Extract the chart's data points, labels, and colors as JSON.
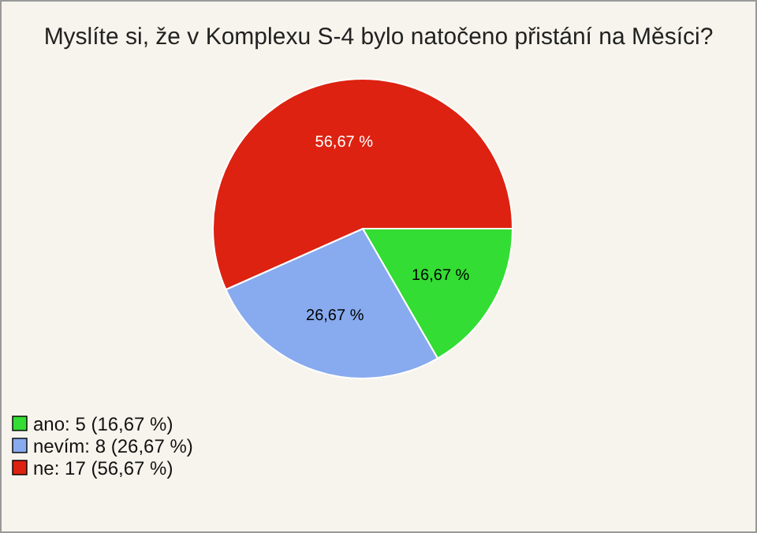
{
  "chart_data": {
    "type": "pie",
    "title": "Myslíte si, že v Komplexu S-4 bylo natočeno přistání na Měsíci?",
    "categories": [
      "ano: 5 (16,67 %)",
      "nevím: 8 (26,67 %)",
      "ne: 17 (56,67 %)"
    ],
    "values": [
      16.67,
      26.67,
      56.67
    ],
    "colors": [
      "#33dd33",
      "#88aaee",
      "#dd2211"
    ],
    "value_labels": [
      "16,67 %",
      "26,67 %",
      "56,67 %"
    ],
    "legend": "bottom left"
  }
}
